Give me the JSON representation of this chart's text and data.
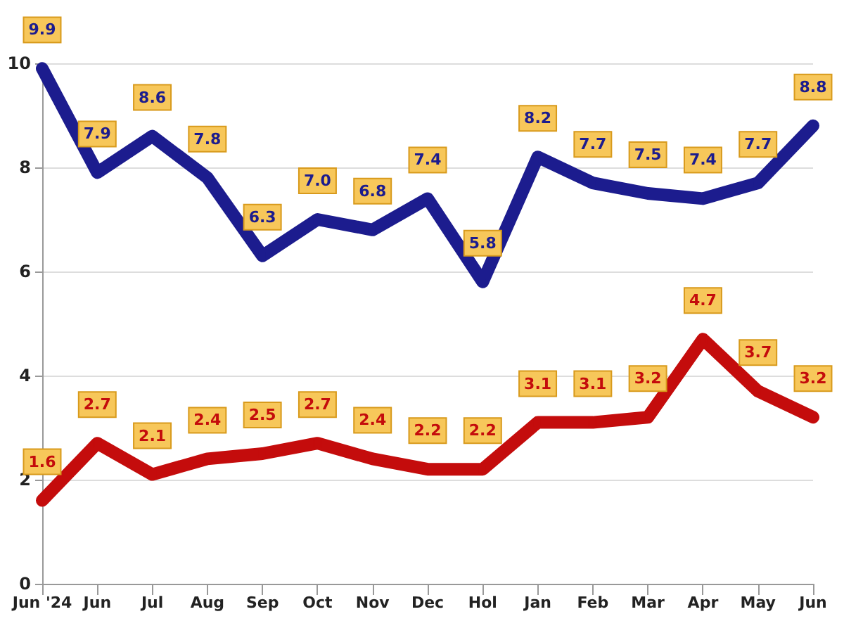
{
  "chart_data": {
    "type": "line",
    "categories": [
      "Jun '24",
      "Jun",
      "Jul",
      "Aug",
      "Sep",
      "Oct",
      "Nov",
      "Dec",
      "Hol",
      "Jan",
      "Feb",
      "Mar",
      "Apr",
      "May",
      "Jun"
    ],
    "series": [
      {
        "color": "#1c1c8e",
        "values": [
          9.9,
          7.9,
          8.6,
          7.8,
          6.3,
          7.0,
          6.8,
          7.4,
          5.8,
          8.2,
          7.7,
          7.5,
          7.4,
          7.7,
          8.8
        ],
        "value_labels": [
          "9.9",
          "7.9",
          "8.6",
          "7.8",
          "6.3",
          "7.0",
          "6.8",
          "7.4",
          "5.8",
          "8.2",
          "7.7",
          "7.5",
          "7.4",
          "7.7",
          "8.8"
        ]
      },
      {
        "color": "#c40c0c",
        "values": [
          1.6,
          2.7,
          2.1,
          2.4,
          2.5,
          2.7,
          2.4,
          2.2,
          2.2,
          3.1,
          3.1,
          3.2,
          4.7,
          3.7,
          3.2
        ],
        "value_labels": [
          "1.6",
          "2.7",
          "2.1",
          "2.4",
          "2.5",
          "2.7",
          "2.4",
          "2.2",
          "2.2",
          "3.1",
          "3.1",
          "3.2",
          "4.7",
          "3.7",
          "3.2"
        ]
      }
    ],
    "ylim": [
      0,
      10
    ],
    "yticks": [
      0,
      2,
      4,
      6,
      8,
      10
    ],
    "grid": "y",
    "marker": "square",
    "line_style": "solid"
  }
}
